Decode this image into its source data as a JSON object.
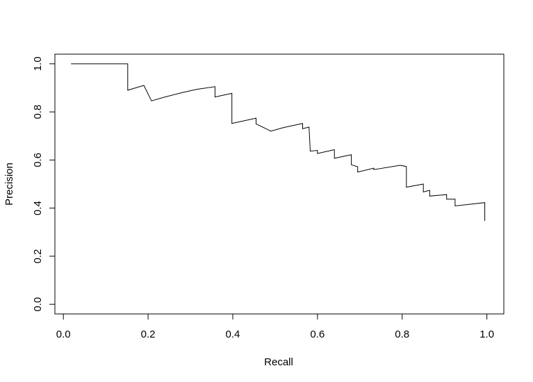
{
  "chart_data": {
    "type": "line",
    "title": "",
    "xlabel": "Recall",
    "ylabel": "Precision",
    "xlim": [
      -0.02,
      1.04
    ],
    "ylim": [
      -0.04,
      1.04
    ],
    "x_ticks": [
      0.0,
      0.2,
      0.4,
      0.6,
      0.8,
      1.0
    ],
    "y_ticks": [
      0.0,
      0.2,
      0.4,
      0.6,
      0.8,
      1.0
    ],
    "x_tick_labels": [
      "0.0",
      "0.2",
      "0.4",
      "0.6",
      "0.8",
      "1.0"
    ],
    "y_tick_labels": [
      "0.0",
      "0.2",
      "0.4",
      "0.6",
      "0.8",
      "1.0"
    ],
    "grid": false,
    "series": [
      {
        "color": "#000000",
        "points": [
          [
            0.018,
            1.0
          ],
          [
            0.152,
            1.0
          ],
          [
            0.152,
            0.89
          ],
          [
            0.19,
            0.91
          ],
          [
            0.208,
            0.846
          ],
          [
            0.24,
            0.862
          ],
          [
            0.28,
            0.88
          ],
          [
            0.315,
            0.894
          ],
          [
            0.358,
            0.905
          ],
          [
            0.358,
            0.862
          ],
          [
            0.398,
            0.877
          ],
          [
            0.398,
            0.752
          ],
          [
            0.455,
            0.774
          ],
          [
            0.455,
            0.75
          ],
          [
            0.49,
            0.72
          ],
          [
            0.52,
            0.735
          ],
          [
            0.565,
            0.752
          ],
          [
            0.565,
            0.73
          ],
          [
            0.58,
            0.737
          ],
          [
            0.583,
            0.637
          ],
          [
            0.6,
            0.64
          ],
          [
            0.6,
            0.627
          ],
          [
            0.64,
            0.643
          ],
          [
            0.64,
            0.607
          ],
          [
            0.68,
            0.622
          ],
          [
            0.68,
            0.58
          ],
          [
            0.695,
            0.572
          ],
          [
            0.695,
            0.55
          ],
          [
            0.733,
            0.566
          ],
          [
            0.733,
            0.56
          ],
          [
            0.795,
            0.578
          ],
          [
            0.81,
            0.573
          ],
          [
            0.81,
            0.487
          ],
          [
            0.85,
            0.5
          ],
          [
            0.85,
            0.467
          ],
          [
            0.865,
            0.474
          ],
          [
            0.865,
            0.45
          ],
          [
            0.905,
            0.456
          ],
          [
            0.905,
            0.437
          ],
          [
            0.925,
            0.437
          ],
          [
            0.925,
            0.409
          ],
          [
            0.995,
            0.423
          ],
          [
            0.995,
            0.347
          ]
        ]
      }
    ]
  }
}
